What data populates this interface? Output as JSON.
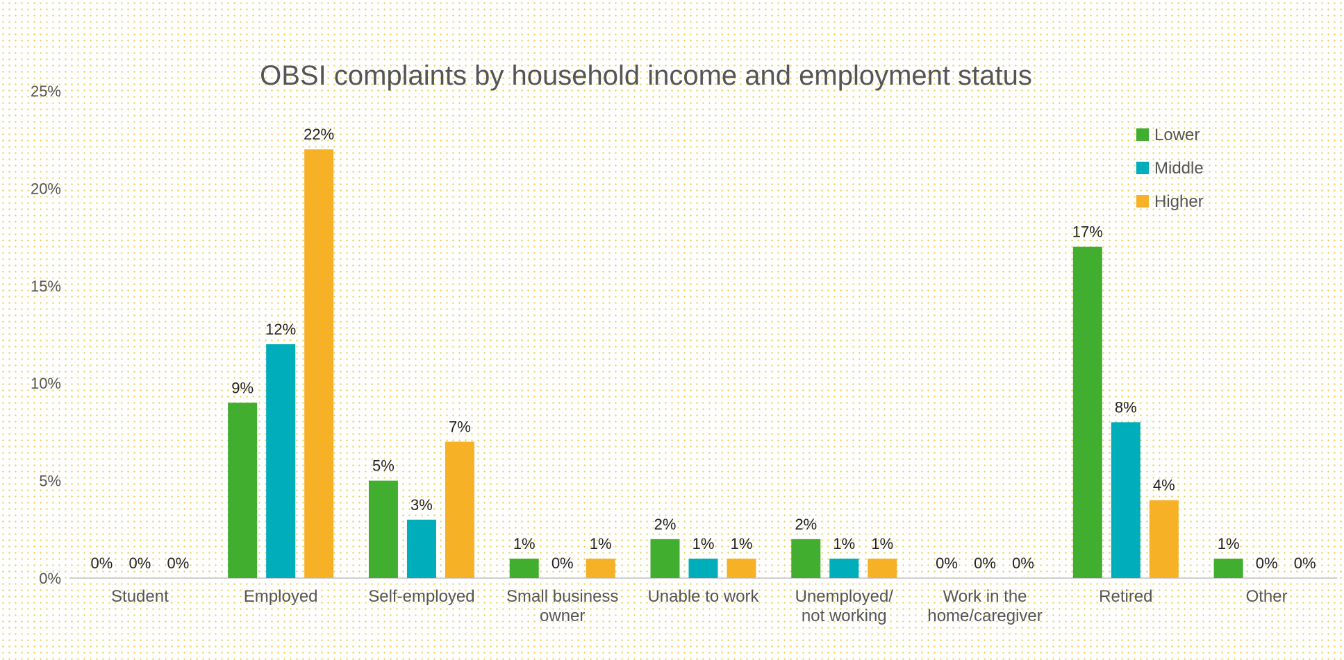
{
  "chart_data": {
    "type": "bar",
    "title": "OBSI complaints by household income and employment status",
    "xlabel": "",
    "ylabel": "",
    "ylim": [
      0,
      25
    ],
    "yticks": [
      0,
      5,
      10,
      15,
      20,
      25
    ],
    "ytick_labels": [
      "0%",
      "5%",
      "10%",
      "15%",
      "20%",
      "25%"
    ],
    "grid": false,
    "legend_position": "top-right",
    "categories": [
      [
        "Student"
      ],
      [
        "Employed"
      ],
      [
        "Self-employed"
      ],
      [
        "Small business",
        "owner"
      ],
      [
        "Unable to work"
      ],
      [
        "Unemployed/",
        "not working"
      ],
      [
        "Work in the",
        "home/caregiver"
      ],
      [
        "Retired"
      ],
      [
        "Other"
      ]
    ],
    "series": [
      {
        "name": "Lower",
        "color": "#41ae30",
        "values": [
          0,
          9,
          5,
          1,
          2,
          2,
          0,
          17,
          1
        ],
        "labels": [
          "0%",
          "9%",
          "5%",
          "1%",
          "2%",
          "2%",
          "0%",
          "17%",
          "1%"
        ]
      },
      {
        "name": "Middle",
        "color": "#00adbb",
        "values": [
          0,
          12,
          3,
          0,
          1,
          1,
          0,
          8,
          0
        ],
        "labels": [
          "0%",
          "12%",
          "3%",
          "0%",
          "1%",
          "1%",
          "0%",
          "8%",
          "0%"
        ]
      },
      {
        "name": "Higher",
        "color": "#f6b127",
        "values": [
          0,
          22,
          7,
          1,
          1,
          1,
          0,
          4,
          0
        ],
        "labels": [
          "0%",
          "22%",
          "7%",
          "1%",
          "1%",
          "1%",
          "0%",
          "4%",
          "0%"
        ]
      }
    ]
  }
}
